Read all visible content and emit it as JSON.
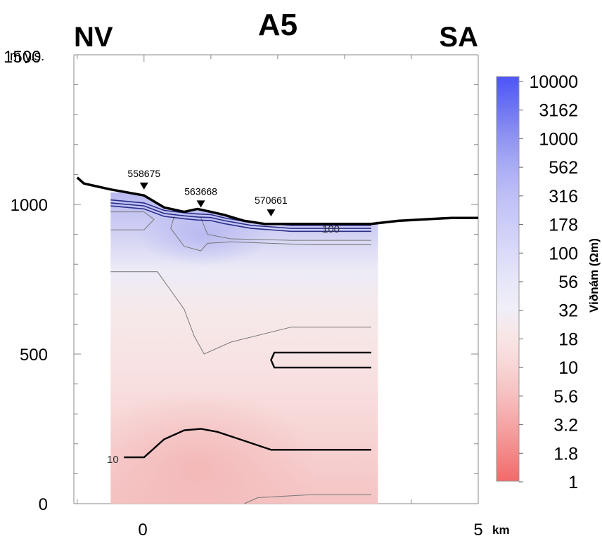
{
  "chart_data": {
    "type": "heatmap",
    "title": "A5",
    "left_label": "NV",
    "right_label": "SA",
    "y_unit": "m y.s.",
    "x_unit": "km",
    "xlim": [
      -1.05,
      5
    ],
    "ylim": [
      0,
      1500
    ],
    "x_ticks": [
      "0",
      "5"
    ],
    "y_ticks": [
      "0",
      "500",
      "1000",
      "1500"
    ],
    "colorbar": {
      "label": "Viðnám (Ωm)",
      "ticks": [
        "10000",
        "3162",
        "1000",
        "562",
        "316",
        "178",
        "100",
        "56",
        "32",
        "18",
        "10",
        "5.6",
        "3.2",
        "1.8",
        "1"
      ],
      "colors": [
        "#4d55f5",
        "#6b72f3",
        "#8c90f2",
        "#a7aaf4",
        "#bcbdf6",
        "#cbcbf8",
        "#d9d9f9",
        "#e6e6f9",
        "#f0eef7",
        "#f8e6e6",
        "#f8d6d6",
        "#f6c0c0",
        "#f5a6a6",
        "#f48888",
        "#f26a6a"
      ]
    },
    "stations": [
      {
        "name": "558675",
        "x": 0.0,
        "y": 1045
      },
      {
        "name": "563668",
        "x": 0.85,
        "y": 985
      },
      {
        "name": "570661",
        "x": 1.9,
        "y": 955
      }
    ],
    "topography": {
      "x": [
        -1.0,
        -0.9,
        -0.5,
        0.0,
        0.3,
        0.6,
        0.8,
        1.0,
        1.2,
        1.5,
        1.8,
        2.2,
        2.8,
        3.4,
        3.8,
        4.2,
        4.6,
        5.0
      ],
      "y": [
        1090,
        1070,
        1050,
        1030,
        990,
        975,
        985,
        975,
        965,
        945,
        935,
        935,
        935,
        935,
        945,
        950,
        955,
        955
      ]
    },
    "model_extent": {
      "x": [
        -0.5,
        3.5
      ],
      "y": [
        0,
        1040
      ]
    },
    "contour_labels": [
      "100",
      "10"
    ],
    "contours": [
      {
        "level": "10",
        "x": [
          -0.3,
          0.0,
          0.3,
          0.6,
          0.85,
          1.1,
          1.5,
          1.9,
          2.5,
          3.4
        ],
        "y": [
          155,
          155,
          215,
          245,
          250,
          240,
          210,
          180,
          180,
          180
        ]
      },
      {
        "level": "10",
        "x": [
          3.4,
          1.95,
          1.9,
          1.95,
          3.4
        ],
        "y": [
          505,
          505,
          480,
          455,
          455
        ]
      },
      {
        "level": "100",
        "x": [
          -0.5,
          0.0,
          0.3,
          0.6,
          0.8,
          1.0,
          1.2,
          1.6,
          2.2,
          2.8,
          3.4
        ],
        "y": [
          1015,
          1005,
          980,
          972,
          968,
          966,
          955,
          940,
          930,
          930,
          930
        ]
      },
      {
        "level": "100",
        "x": [
          -0.5,
          0.0,
          0.3,
          0.6,
          0.8,
          1.0,
          1.2,
          1.6,
          2.2,
          2.8,
          3.4
        ],
        "y": [
          1005,
          995,
          970,
          962,
          958,
          956,
          946,
          930,
          920,
          920,
          920
        ]
      },
      {
        "level": "100",
        "x": [
          -0.5,
          0.0,
          0.3,
          0.6,
          0.8,
          1.0,
          1.2,
          1.6,
          2.2,
          2.8,
          3.4
        ],
        "y": [
          995,
          985,
          960,
          952,
          948,
          946,
          936,
          920,
          910,
          910,
          910
        ]
      }
    ],
    "thin_contours": [
      {
        "x": [
          -0.5,
          0.0,
          0.15,
          0.0,
          -0.5
        ],
        "y": [
          975,
          975,
          950,
          915,
          915
        ]
      },
      {
        "x": [
          0.85,
          0.95,
          1.3,
          2.2,
          3.4
        ],
        "y": [
          955,
          900,
          885,
          880,
          880
        ]
      },
      {
        "x": [
          0.45,
          0.4,
          0.6,
          0.85,
          0.95,
          1.3,
          2.5,
          3.4
        ],
        "y": [
          960,
          920,
          860,
          845,
          870,
          875,
          865,
          865
        ]
      },
      {
        "x": [
          -0.5,
          0.2,
          0.6,
          0.75,
          0.9,
          1.3,
          2.2,
          3.4
        ],
        "y": [
          775,
          775,
          650,
          560,
          500,
          540,
          590,
          590
        ]
      },
      {
        "x": [
          1.5,
          1.7,
          2.5,
          3.4
        ],
        "y": [
          0,
          20,
          30,
          30
        ]
      }
    ]
  }
}
